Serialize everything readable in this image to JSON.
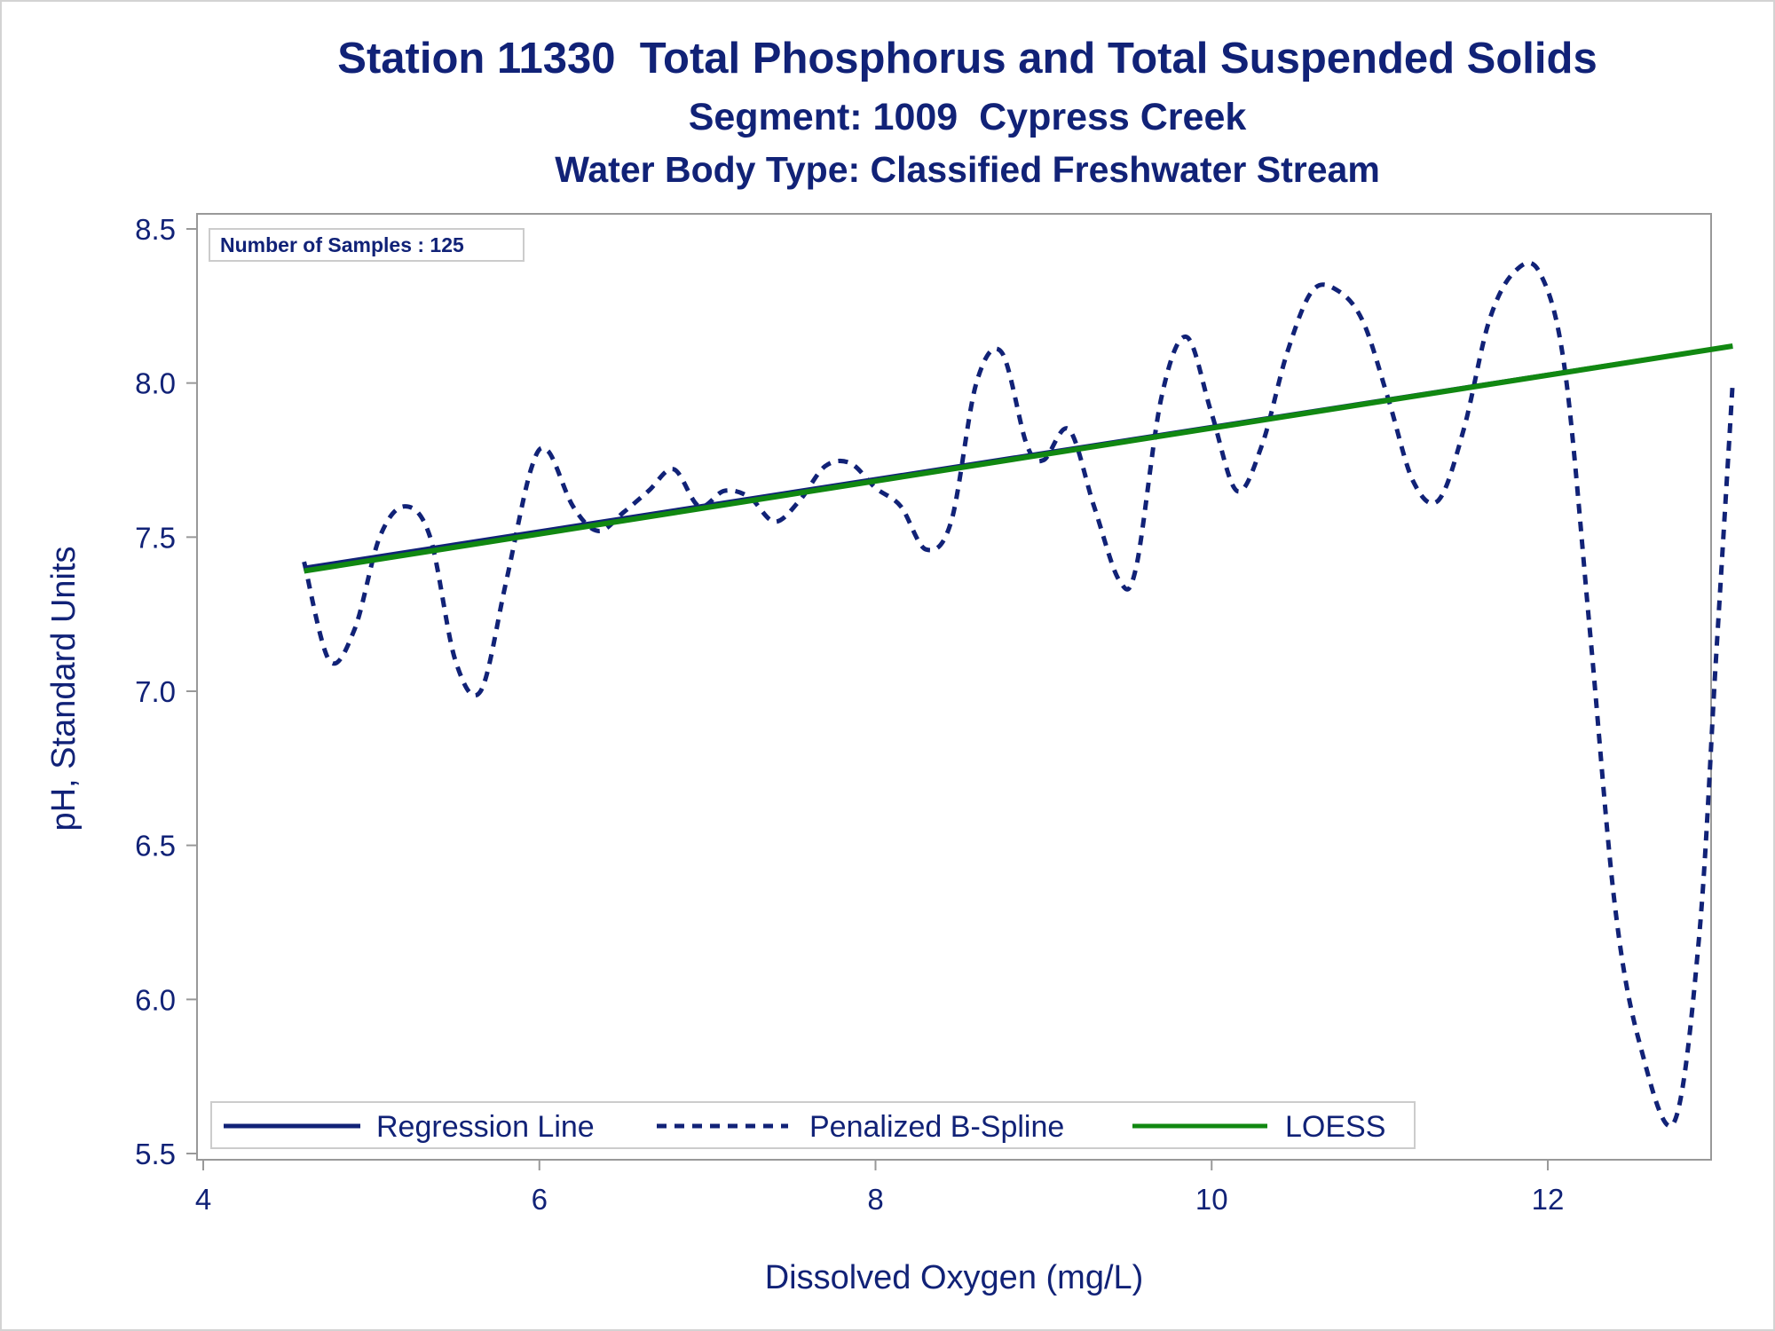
{
  "colors": {
    "regression": "#112277",
    "spline": "#112277",
    "loess": "#118811",
    "text": "#112277",
    "frame": "#999999"
  },
  "chart_data": {
    "type": "line",
    "title": "Station 11330  Total Phosphorus and Total Suspended Solids",
    "subtitle": "Segment: 1009  Cypress Creek",
    "subtitle2": "Water Body Type: Classified Freshwater Stream",
    "xlabel": "Dissolved Oxygen (mg/L)",
    "ylabel": "pH, Standard Units",
    "xlim": [
      4,
      13.1
    ],
    "ylim": [
      5.5,
      8.5
    ],
    "xticks": [
      4,
      6,
      8,
      10,
      12
    ],
    "yticks": [
      5.5,
      6.0,
      6.5,
      7.0,
      7.5,
      8.0,
      8.5
    ],
    "xtick_labels": [
      "4",
      "6",
      "8",
      "10",
      "12"
    ],
    "ytick_labels": [
      "5.5",
      "6.0",
      "6.5",
      "7.0",
      "7.5",
      "8.0",
      "8.5"
    ],
    "annotation": "Number of Samples : 125",
    "legend_position": "bottom-left inside",
    "series": [
      {
        "name": "Regression Line",
        "style": "solid",
        "x": [
          4.6,
          13.1
        ],
        "y": [
          7.4,
          8.12
        ]
      },
      {
        "name": "Penalized B-Spline",
        "style": "dashed",
        "x": [
          4.6,
          4.75,
          4.9,
          5.05,
          5.2,
          5.35,
          5.5,
          5.65,
          5.8,
          5.95,
          6.05,
          6.2,
          6.35,
          6.5,
          6.65,
          6.8,
          6.95,
          7.1,
          7.25,
          7.4,
          7.55,
          7.7,
          7.85,
          8.0,
          8.15,
          8.3,
          8.45,
          8.6,
          8.75,
          8.9,
          9.0,
          9.15,
          9.3,
          9.45,
          9.55,
          9.7,
          9.85,
          10.0,
          10.15,
          10.3,
          10.45,
          10.6,
          10.75,
          10.9,
          11.05,
          11.2,
          11.35,
          11.5,
          11.65,
          11.8,
          11.95,
          12.1,
          12.25,
          12.4,
          12.55,
          12.75,
          12.9,
          13.0,
          13.1
        ],
        "y": [
          7.42,
          7.1,
          7.2,
          7.5,
          7.6,
          7.5,
          7.1,
          7.0,
          7.35,
          7.72,
          7.78,
          7.6,
          7.52,
          7.58,
          7.65,
          7.72,
          7.6,
          7.65,
          7.63,
          7.55,
          7.62,
          7.73,
          7.74,
          7.66,
          7.6,
          7.46,
          7.55,
          8.0,
          8.1,
          7.8,
          7.75,
          7.85,
          7.6,
          7.36,
          7.4,
          7.95,
          8.15,
          7.9,
          7.65,
          7.8,
          8.1,
          8.3,
          8.3,
          8.2,
          7.95,
          7.68,
          7.62,
          7.85,
          8.2,
          8.36,
          8.36,
          8.05,
          7.2,
          6.3,
          5.85,
          5.6,
          6.2,
          7.1,
          8.0
        ]
      },
      {
        "name": "LOESS",
        "style": "solid",
        "x": [
          4.6,
          13.1
        ],
        "y": [
          7.39,
          8.12
        ]
      }
    ]
  }
}
